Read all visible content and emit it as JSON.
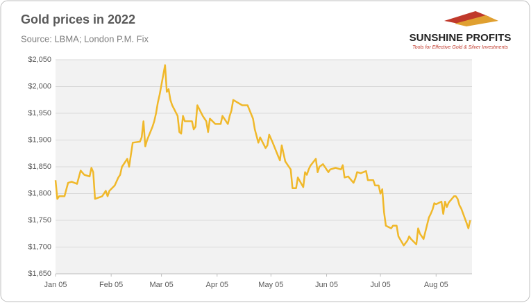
{
  "chart_data": {
    "type": "line",
    "title": "Gold prices in 2022",
    "subtitle": "Source: LBMA; London P.M. Fix",
    "brand": {
      "name": "SUNSHINE PROFITS",
      "tagline": "Tools for Effective Gold & Silver Investments"
    },
    "x": [
      "Jan 05",
      "Jan 06",
      "Jan 07",
      "Jan 10",
      "Jan 12",
      "Jan 14",
      "Jan 17",
      "Jan 19",
      "Jan 21",
      "Jan 24",
      "Jan 25",
      "Jan 26",
      "Jan 27",
      "Jan 31",
      "Feb 02",
      "Feb 03",
      "Feb 04",
      "Feb 07",
      "Feb 09",
      "Feb 10",
      "Feb 11",
      "Feb 14",
      "Feb 15",
      "Feb 17",
      "Feb 21",
      "Feb 22",
      "Feb 23",
      "Feb 24",
      "Feb 25",
      "Feb 28",
      "Mar 01",
      "Mar 02",
      "Mar 03",
      "Mar 04",
      "Mar 07",
      "Mar 08",
      "Mar 09",
      "Mar 10",
      "Mar 11",
      "Mar 14",
      "Mar 15",
      "Mar 16",
      "Mar 17",
      "Mar 18",
      "Mar 22",
      "Mar 23",
      "Mar 24",
      "Mar 25",
      "Mar 28",
      "Mar 30",
      "Mar 31",
      "Apr 01",
      "Apr 04",
      "Apr 05",
      "Apr 07",
      "Apr 08",
      "Apr 11",
      "Apr 12",
      "Apr 13",
      "Apr 14",
      "Apr 19",
      "Apr 22",
      "Apr 25",
      "Apr 26",
      "Apr 28",
      "Apr 29",
      "May 02",
      "May 03",
      "May 04",
      "May 06",
      "May 09",
      "May 10",
      "May 11",
      "May 13",
      "May 16",
      "May 17",
      "May 19",
      "May 20",
      "May 23",
      "May 24",
      "May 25",
      "May 26",
      "May 27",
      "May 30",
      "May 31",
      "Jun 01",
      "Jun 03",
      "Jun 06",
      "Jun 07",
      "Jun 10",
      "Jun 13",
      "Jun 14",
      "Jun 15",
      "Jun 17",
      "Jun 20",
      "Jun 21",
      "Jun 22",
      "Jun 24",
      "Jun 27",
      "Jun 28",
      "Jul 01",
      "Jul 02",
      "Jul 04",
      "Jul 05",
      "Jul 06",
      "Jul 07",
      "Jul 08",
      "Jul 11",
      "Jul 12",
      "Jul 14",
      "Jul 15",
      "Jul 18",
      "Jul 20",
      "Jul 21",
      "Jul 22",
      "Jul 25",
      "Jul 26",
      "Jul 27",
      "Jul 28",
      "Jul 29",
      "Aug 01",
      "Aug 02",
      "Aug 03",
      "Aug 04",
      "Aug 05",
      "Aug 08",
      "Aug 09",
      "Aug 10",
      "Aug 11",
      "Aug 12",
      "Aug 15",
      "Aug 16",
      "Aug 17",
      "Aug 18",
      "Aug 19",
      "Aug 22",
      "Aug 23",
      "Aug 24"
    ],
    "series": [
      {
        "name": "Gold price",
        "color": "#f0b82a",
        "values": [
          1825,
          1790,
          1795,
          1795,
          1820,
          1822,
          1818,
          1843,
          1835,
          1832,
          1848,
          1840,
          1790,
          1795,
          1805,
          1795,
          1805,
          1815,
          1830,
          1835,
          1850,
          1865,
          1850,
          1895,
          1897,
          1905,
          1935,
          1888,
          1900,
          1925,
          1935,
          1950,
          1970,
          1985,
          2040,
          1990,
          1995,
          1975,
          1965,
          1945,
          1915,
          1912,
          1945,
          1935,
          1935,
          1920,
          1925,
          1965,
          1945,
          1935,
          1915,
          1940,
          1930,
          1930,
          1930,
          1945,
          1930,
          1945,
          1955,
          1975,
          1965,
          1965,
          1940,
          1920,
          1895,
          1905,
          1885,
          1890,
          1910,
          1895,
          1870,
          1862,
          1890,
          1860,
          1845,
          1810,
          1810,
          1830,
          1812,
          1840,
          1835,
          1845,
          1852,
          1865,
          1840,
          1850,
          1855,
          1840,
          1845,
          1848,
          1845,
          1853,
          1830,
          1832,
          1820,
          1828,
          1840,
          1838,
          1842,
          1825,
          1825,
          1815,
          1815,
          1800,
          1808,
          1765,
          1740,
          1735,
          1740,
          1740,
          1720,
          1703,
          1712,
          1720,
          1715,
          1705,
          1735,
          1725,
          1720,
          1715,
          1755,
          1762,
          1770,
          1782,
          1780,
          1785,
          1762,
          1785,
          1775,
          1783,
          1795,
          1795,
          1790,
          1778,
          1772,
          1745,
          1735,
          1750
        ]
      }
    ],
    "xlim": [
      "Jan 05",
      "Aug 25"
    ],
    "xticks": [
      "Jan 05",
      "Feb 05",
      "Mar 05",
      "Apr 05",
      "May 05",
      "Jun 05",
      "Jul 05",
      "Aug 05"
    ],
    "ylim": [
      1650,
      2050
    ],
    "yticks": [
      {
        "value": 1650,
        "label": "$1,650"
      },
      {
        "value": 1700,
        "label": "$1,700"
      },
      {
        "value": 1750,
        "label": "$1,750"
      },
      {
        "value": 1800,
        "label": "$1,800"
      },
      {
        "value": 1850,
        "label": "$1,850"
      },
      {
        "value": 1900,
        "label": "$1,900"
      },
      {
        "value": 1950,
        "label": "$1,950"
      },
      {
        "value": 2000,
        "label": "$2,000"
      },
      {
        "value": 2050,
        "label": "$2,050"
      }
    ],
    "grid": true
  }
}
